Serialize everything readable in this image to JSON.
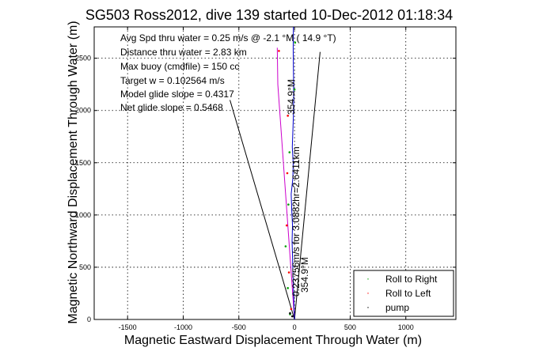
{
  "chart_data": {
    "type": "line",
    "title": "SG503 Ross2012, dive 139 started 10-Dec-2012 01:18:34",
    "xlabel": "Magnetic Eastward Displacement Through Water (m)",
    "ylabel": "Magnetic Northward Displacement Through Water (m)",
    "xlim": [
      -1800,
      1450
    ],
    "ylim": [
      0,
      2800
    ],
    "xticks": [
      -1500,
      -1000,
      -500,
      0,
      500,
      1000
    ],
    "yticks": [
      0,
      500,
      1000,
      1500,
      2000,
      2500
    ],
    "grid": true,
    "annotations": [
      "Avg Spd thru water =  0.25 m/s @  -2.1    °M ( 14.9 °T)",
      "Distance thru water =  2.83 km",
      "Max buoy (cmdfile) = 150 cc",
      "Target w = 0.102564 m/s",
      "Model glide slope = 0.4317",
      "Net glide slope = 0.5468"
    ],
    "rotated_labels": {
      "heading_upper": "354.9°M",
      "distance": "0.23756m/s for 3.0882hr=2.6411km",
      "heading_lower": "354.9°M"
    },
    "legend": {
      "placement": "bottom-right",
      "entries": [
        {
          "label": "Roll to Right",
          "color": "#00a000"
        },
        {
          "label": "Roll to Left",
          "color": "#ff0000"
        },
        {
          "label": "pump",
          "color": "#000000"
        }
      ]
    },
    "series": [
      {
        "name": "Roll to Right",
        "color": "#00a000",
        "x": [
          -40,
          -60,
          -80,
          -55,
          -45,
          0,
          5
        ],
        "y": [
          50,
          300,
          700,
          1100,
          1600,
          2200,
          2650
        ]
      },
      {
        "name": "Roll to Left",
        "color": "#ff0000",
        "x": [
          -30,
          -50,
          -70,
          -65,
          -60,
          -140
        ],
        "y": [
          100,
          450,
          900,
          1400,
          1950,
          2570
        ]
      },
      {
        "name": "pump",
        "color": "#000000",
        "x": [
          -20,
          -40
        ],
        "y": [
          30,
          60
        ]
      }
    ],
    "track": {
      "color": "#0000cc",
      "x": [
        0,
        -5,
        -10,
        -15,
        -18,
        -22,
        -18,
        -25,
        -30,
        -15,
        -12,
        -20,
        -15,
        -10,
        -8,
        -8,
        -10,
        -12,
        -10
      ],
      "y": [
        0,
        150,
        300,
        450,
        600,
        750,
        900,
        1050,
        1200,
        1350,
        1500,
        1650,
        1800,
        1950,
        2100,
        2250,
        2400,
        2600,
        2800
      ]
    },
    "intended_track": {
      "color": "#cc00cc",
      "x": [
        0,
        -30,
        -60,
        -90,
        -120,
        -150,
        -155
      ],
      "y": [
        0,
        450,
        900,
        1350,
        1800,
        2250,
        2600
      ]
    },
    "cone_lines": {
      "color": "#000000",
      "left": {
        "x": [
          0,
          -580
        ],
        "y": [
          0,
          2100
        ]
      },
      "right": {
        "x": [
          0,
          230
        ],
        "y": [
          0,
          2560
        ]
      }
    }
  }
}
